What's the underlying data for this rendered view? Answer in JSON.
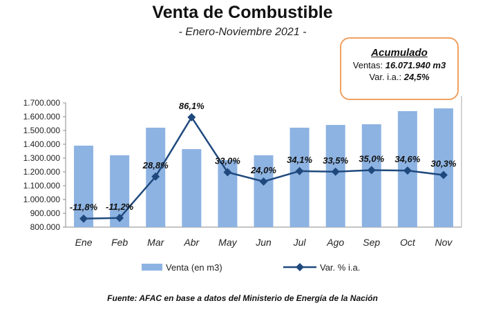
{
  "title": "Venta de Combustible",
  "subtitle": "- Enero-Noviembre 2021 -",
  "accumulated": {
    "heading": "Acumulado",
    "sales_label": "Ventas: ",
    "sales_value": "16.071.940 m3",
    "var_label": "Var. i.a.: ",
    "var_value": "24,5%"
  },
  "source": "Fuente: AFAC en base a datos del Ministerio de Energía de la Nación",
  "chart_data": {
    "type": "bar+line",
    "categories": [
      "Ene",
      "Feb",
      "Mar",
      "Abr",
      "May",
      "Jun",
      "Jul",
      "Ago",
      "Sep",
      "Oct",
      "Nov"
    ],
    "series": [
      {
        "name": "Venta (en m3)",
        "type": "bar",
        "axis": "left",
        "color": "#8db3e2",
        "values": [
          1390000,
          1320000,
          1520000,
          1365000,
          1285000,
          1320000,
          1520000,
          1540000,
          1545000,
          1640000,
          1660000
        ]
      },
      {
        "name": "Var. % i.a.",
        "type": "line",
        "axis": "right-hidden",
        "color": "#1f497d",
        "values": [
          -11.8,
          -11.2,
          28.8,
          86.1,
          33.0,
          24.0,
          34.1,
          33.5,
          35.0,
          34.6,
          30.3
        ],
        "labels": [
          "-11,8%",
          "-11,2%",
          "28,8%",
          "86,1%",
          "33,0%",
          "24,0%",
          "34,1%",
          "33,5%",
          "35,0%",
          "34,6%",
          "30,3%"
        ]
      }
    ],
    "ylim": [
      800000,
      1700000
    ],
    "y2lim": [
      -20,
      100
    ],
    "yticks": [
      "800.000",
      "900.000",
      "1.000.000",
      "1.100.000",
      "1.200.000",
      "1.300.000",
      "1.400.000",
      "1.500.000",
      "1.600.000",
      "1.700.000"
    ],
    "grid": false,
    "legend": "bottom"
  }
}
